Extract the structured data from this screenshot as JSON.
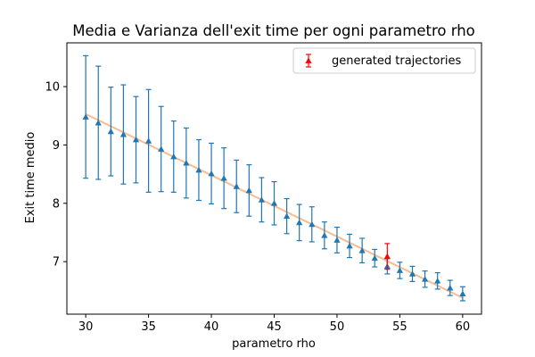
{
  "chart_data": {
    "type": "scatter",
    "title": "Media e Varianza dell'exit time per ogni parametro rho",
    "xlabel": "parametro rho",
    "ylabel": "Exit time medio",
    "xlim": [
      28.5,
      61.5
    ],
    "ylim": [
      6.1,
      10.75
    ],
    "xticks": [
      30,
      35,
      40,
      45,
      50,
      55,
      60
    ],
    "yticks": [
      7,
      8,
      9,
      10
    ],
    "grid": false,
    "legend": {
      "placement": "top-right",
      "entries": [
        {
          "label": "generated trajectories",
          "color": "#ff0000",
          "marker": "triangle"
        }
      ]
    },
    "colors": {
      "main_series": "#1f77b4",
      "highlight_series": "#ff0000",
      "fit_line": "#f5b17f"
    },
    "series": [
      {
        "marker": "triangle",
        "color": "#1f77b4",
        "x": [
          30,
          31,
          32,
          33,
          34,
          35,
          36,
          37,
          38,
          39,
          40,
          41,
          42,
          43,
          44,
          45,
          46,
          47,
          48,
          49,
          50,
          51,
          52,
          53,
          54,
          55,
          56,
          57,
          58,
          59,
          60
        ],
        "y": [
          9.48,
          9.38,
          9.23,
          9.18,
          9.09,
          9.07,
          8.93,
          8.8,
          8.69,
          8.57,
          8.51,
          8.43,
          8.29,
          8.22,
          8.06,
          8.0,
          7.78,
          7.67,
          7.64,
          7.45,
          7.37,
          7.27,
          7.19,
          7.06,
          6.92,
          6.85,
          6.79,
          6.7,
          6.67,
          6.55,
          6.45
        ],
        "yerr": [
          1.05,
          0.97,
          0.76,
          0.85,
          0.74,
          0.88,
          0.73,
          0.61,
          0.6,
          0.52,
          0.52,
          0.52,
          0.45,
          0.44,
          0.38,
          0.37,
          0.3,
          0.31,
          0.3,
          0.23,
          0.22,
          0.2,
          0.21,
          0.15,
          0.13,
          0.14,
          0.13,
          0.14,
          0.14,
          0.13,
          0.12
        ]
      },
      {
        "name": "generated trajectories",
        "marker": "triangle",
        "color": "#ff0000",
        "x": [
          54
        ],
        "y": [
          7.09
        ],
        "yerr": [
          0.22
        ]
      }
    ],
    "fit_line": {
      "color": "#f5b17f",
      "x": [
        30,
        60
      ],
      "y": [
        9.53,
        6.38
      ]
    }
  }
}
